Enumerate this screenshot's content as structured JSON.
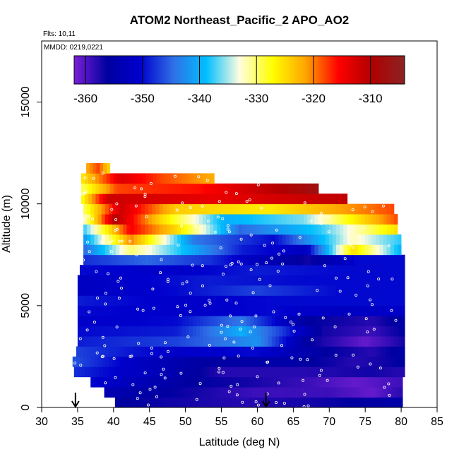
{
  "chart_data": {
    "type": "heatmap",
    "title": "ATOM2 Northeast_Pacific_2 APO_AO2",
    "annotations": [
      "Flts: 10,11",
      "MMDD: 0219,0221"
    ],
    "xlabel": "Latitude (deg N)",
    "ylabel": "Altitude (m)",
    "xlim": [
      30,
      85
    ],
    "ylim": [
      0,
      18000
    ],
    "x_ticks": [
      30,
      35,
      40,
      45,
      50,
      55,
      60,
      65,
      70,
      75,
      80,
      85
    ],
    "y_ticks": [
      0,
      5000,
      10000,
      15000
    ],
    "colorbar": {
      "range": [
        -362,
        -304
      ],
      "ticks": [
        -360,
        -350,
        -340,
        -330,
        -320,
        -310
      ],
      "colors": [
        "#7a1fd6",
        "#0000a0",
        "#0000cd",
        "#2f6fe6",
        "#00bfff",
        "#fffde0",
        "#ffff00",
        "#ffa500",
        "#ff0000",
        "#b00000",
        "#8b2323"
      ]
    },
    "markers": [
      {
        "label": "flight-endpoint-arrow-1",
        "x": 34.7
      },
      {
        "label": "flight-endpoint-arrow-2",
        "x": 61.2
      }
    ],
    "rows": [
      {
        "y0": 0,
        "y1": 500,
        "x0": 40.2,
        "x1": 80.2,
        "stops": [
          [
            0,
            -356
          ],
          [
            0.2,
            -357
          ],
          [
            0.45,
            -358
          ],
          [
            0.7,
            -357
          ],
          [
            1,
            -355
          ]
        ]
      },
      {
        "y0": 500,
        "y1": 1000,
        "x0": 38.7,
        "x1": 80.2,
        "stops": [
          [
            0,
            -354
          ],
          [
            0.3,
            -357
          ],
          [
            0.5,
            -359
          ],
          [
            0.75,
            -359
          ],
          [
            0.9,
            -361
          ],
          [
            1,
            -358
          ]
        ]
      },
      {
        "y0": 1000,
        "y1": 1500,
        "x0": 36.8,
        "x1": 80.2,
        "stops": [
          [
            0,
            -350
          ],
          [
            0.3,
            -356
          ],
          [
            0.5,
            -357
          ],
          [
            0.7,
            -359
          ],
          [
            0.85,
            -361
          ],
          [
            1,
            -359
          ]
        ]
      },
      {
        "y0": 1500,
        "y1": 2000,
        "x0": 34.5,
        "x1": 80.5,
        "stops": [
          [
            0,
            -348
          ],
          [
            0.25,
            -353
          ],
          [
            0.45,
            -358
          ],
          [
            0.7,
            -358
          ],
          [
            0.9,
            -357
          ],
          [
            1,
            -358
          ]
        ]
      },
      {
        "y0": 2000,
        "y1": 2500,
        "x0": 34.3,
        "x1": 80.5,
        "stops": [
          [
            0,
            -346
          ],
          [
            0.2,
            -352
          ],
          [
            0.4,
            -356
          ],
          [
            0.65,
            -355
          ],
          [
            0.85,
            -358
          ],
          [
            1,
            -356
          ]
        ]
      },
      {
        "y0": 2500,
        "y1": 3000,
        "x0": 34.8,
        "x1": 80.5,
        "stops": [
          [
            0,
            -347
          ],
          [
            0.3,
            -351
          ],
          [
            0.55,
            -350
          ],
          [
            0.75,
            -356
          ],
          [
            0.9,
            -358
          ],
          [
            1,
            -355
          ]
        ]
      },
      {
        "y0": 3000,
        "y1": 3500,
        "x0": 35.0,
        "x1": 80.5,
        "stops": [
          [
            0,
            -349
          ],
          [
            0.3,
            -347
          ],
          [
            0.55,
            -342
          ],
          [
            0.7,
            -356
          ],
          [
            0.88,
            -361
          ],
          [
            1,
            -357
          ]
        ]
      },
      {
        "y0": 3500,
        "y1": 4000,
        "x0": 35.0,
        "x1": 80.5,
        "stops": [
          [
            0,
            -350
          ],
          [
            0.3,
            -349
          ],
          [
            0.5,
            -340
          ],
          [
            0.62,
            -347
          ],
          [
            0.75,
            -357
          ],
          [
            0.9,
            -359
          ],
          [
            1,
            -356
          ]
        ]
      },
      {
        "y0": 4000,
        "y1": 4500,
        "x0": 35.0,
        "x1": 80.5,
        "stops": [
          [
            0,
            -351
          ],
          [
            0.3,
            -350
          ],
          [
            0.5,
            -344
          ],
          [
            0.7,
            -356
          ],
          [
            0.9,
            -358
          ],
          [
            1,
            -355
          ]
        ]
      },
      {
        "y0": 4500,
        "y1": 5000,
        "x0": 35.0,
        "x1": 80.5,
        "stops": [
          [
            0,
            -350
          ],
          [
            0.35,
            -351
          ],
          [
            0.6,
            -350
          ],
          [
            0.8,
            -352
          ],
          [
            1,
            -351
          ]
        ]
      },
      {
        "y0": 5000,
        "y1": 5500,
        "x0": 35.0,
        "x1": 80.5,
        "stops": [
          [
            0,
            -349
          ],
          [
            0.3,
            -351
          ],
          [
            0.6,
            -350
          ],
          [
            1,
            -350
          ]
        ]
      },
      {
        "y0": 5500,
        "y1": 6000,
        "x0": 35.0,
        "x1": 80.5,
        "stops": [
          [
            0,
            -352
          ],
          [
            0.3,
            -350
          ],
          [
            0.55,
            -347
          ],
          [
            0.8,
            -350
          ],
          [
            1,
            -350
          ]
        ]
      },
      {
        "y0": 6000,
        "y1": 6500,
        "x0": 35.0,
        "x1": 80.5,
        "stops": [
          [
            0,
            -352
          ],
          [
            0.4,
            -349
          ],
          [
            0.7,
            -350
          ],
          [
            1,
            -350
          ]
        ]
      },
      {
        "y0": 6500,
        "y1": 7000,
        "x0": 35.3,
        "x1": 80.5,
        "stops": [
          [
            0,
            -350
          ],
          [
            0.3,
            -351
          ],
          [
            0.55,
            -349
          ],
          [
            0.8,
            -350
          ],
          [
            1,
            -350
          ]
        ]
      },
      {
        "y0": 7000,
        "y1": 7500,
        "x0": 35.8,
        "x1": 80.5,
        "stops": [
          [
            0,
            -348
          ],
          [
            0.2,
            -345
          ],
          [
            0.4,
            -348
          ],
          [
            0.55,
            -353
          ],
          [
            0.7,
            -357
          ],
          [
            0.85,
            -350
          ],
          [
            1,
            -350
          ]
        ]
      },
      {
        "y0": 7500,
        "y1": 8000,
        "x0": 35.8,
        "x1": 80.0,
        "stops": [
          [
            0,
            -345
          ],
          [
            0.15,
            -330
          ],
          [
            0.3,
            -338
          ],
          [
            0.5,
            -349
          ],
          [
            0.7,
            -352
          ],
          [
            0.85,
            -325
          ],
          [
            1,
            -340
          ]
        ]
      },
      {
        "y0": 8000,
        "y1": 8500,
        "x0": 35.8,
        "x1": 80.0,
        "stops": [
          [
            0,
            -342
          ],
          [
            0.15,
            -320
          ],
          [
            0.35,
            -344
          ],
          [
            0.6,
            -350
          ],
          [
            0.85,
            -332
          ],
          [
            1,
            -338
          ]
        ]
      },
      {
        "y0": 8500,
        "y1": 9000,
        "x0": 35.8,
        "x1": 79.5,
        "stops": [
          [
            0,
            -338
          ],
          [
            0.15,
            -315
          ],
          [
            0.3,
            -325
          ],
          [
            0.5,
            -345
          ],
          [
            0.75,
            -338
          ],
          [
            1,
            -325
          ]
        ]
      },
      {
        "y0": 9000,
        "y1": 9500,
        "x0": 35.8,
        "x1": 79.5,
        "stops": [
          [
            0,
            -333
          ],
          [
            0.1,
            -310
          ],
          [
            0.25,
            -325
          ],
          [
            0.45,
            -340
          ],
          [
            0.7,
            -336
          ],
          [
            1,
            -318
          ]
        ]
      },
      {
        "y0": 9500,
        "y1": 10000,
        "x0": 35.8,
        "x1": 79.0,
        "stops": [
          [
            0,
            -330
          ],
          [
            0.12,
            -312
          ],
          [
            0.3,
            -324
          ],
          [
            0.6,
            -326
          ],
          [
            1,
            -318
          ]
        ]
      },
      {
        "y0": 10000,
        "y1": 10500,
        "x0": 35.5,
        "x1": 72.5,
        "stops": [
          [
            0,
            -328
          ],
          [
            0.1,
            -312
          ],
          [
            0.5,
            -314
          ],
          [
            0.8,
            -312
          ],
          [
            1,
            -311
          ]
        ]
      },
      {
        "y0": 10500,
        "y1": 11000,
        "x0": 35.5,
        "x1": 68.5,
        "stops": [
          [
            0,
            -330
          ],
          [
            0.15,
            -318
          ],
          [
            0.5,
            -316
          ],
          [
            1,
            -307
          ]
        ]
      },
      {
        "y0": 11000,
        "y1": 11500,
        "x0": 35.5,
        "x1": 54.0,
        "stops": [
          [
            0,
            -326
          ],
          [
            0.3,
            -313
          ],
          [
            0.6,
            -318
          ],
          [
            1,
            -322
          ]
        ]
      },
      {
        "y0": 11500,
        "y1": 12000,
        "x0": 36.2,
        "x1": 39.5,
        "stops": [
          [
            0,
            -322
          ],
          [
            0.5,
            -318
          ],
          [
            1,
            -325
          ]
        ]
      }
    ]
  }
}
